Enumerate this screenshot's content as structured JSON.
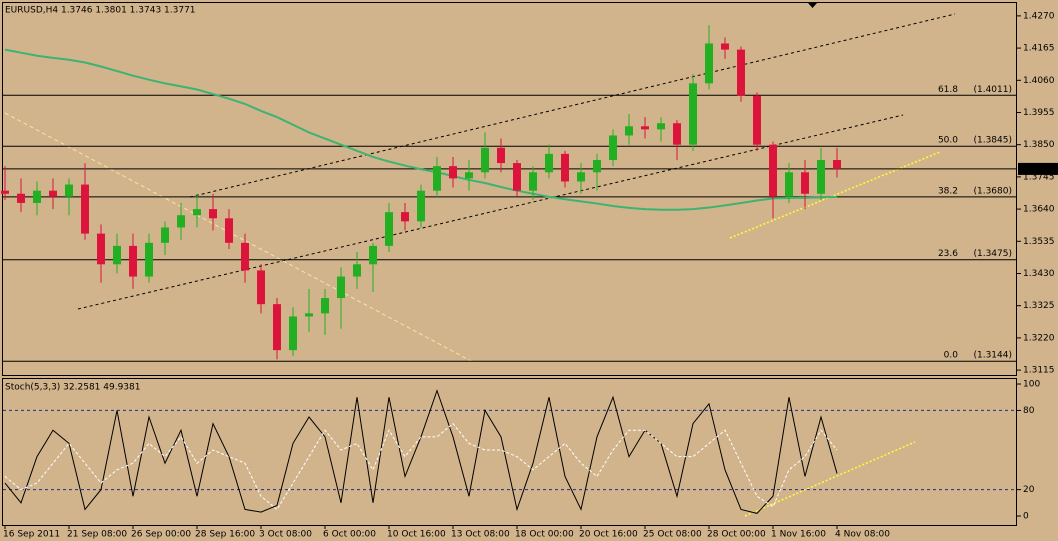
{
  "chart_data": [
    {
      "type": "candlestick",
      "title": "EURUSD,H4  1.3746 1.3801 1.3743 1.3771",
      "categories": [
        "16 Sep 2011",
        null,
        null,
        null,
        "21 Sep 08:00",
        null,
        null,
        null,
        "26 Sep 00:00",
        null,
        null,
        null,
        "28 Sep 16:00",
        null,
        null,
        null,
        "3 Oct 08:00",
        null,
        null,
        null,
        "6 Oct 00:00",
        null,
        null,
        null,
        "10 Oct 16:00",
        null,
        null,
        null,
        "13 Oct 08:00",
        null,
        null,
        null,
        "18 Oct 00:00",
        null,
        null,
        null,
        "20 Oct 16:00",
        null,
        null,
        null,
        "25 Oct 08:00",
        null,
        null,
        null,
        "28 Oct 00:00",
        null,
        null,
        null,
        "1 Nov 16:00",
        null,
        null,
        null,
        "4 Nov 08:00"
      ],
      "open": [
        1.37,
        1.369,
        1.366,
        1.37,
        1.368,
        1.372,
        1.356,
        1.346,
        1.352,
        1.342,
        1.353,
        1.358,
        1.362,
        1.364,
        1.361,
        1.353,
        1.344,
        1.333,
        1.318,
        1.329,
        1.33,
        1.335,
        1.342,
        1.346,
        1.352,
        1.363,
        1.36,
        1.37,
        1.378,
        1.374,
        1.376,
        1.384,
        1.379,
        1.37,
        1.376,
        1.382,
        1.373,
        1.376,
        1.38,
        1.388,
        1.391,
        1.39,
        1.392,
        1.385,
        1.405,
        1.418,
        1.416,
        1.401,
        1.385,
        1.368,
        1.376,
        1.369,
        1.38
      ],
      "high": [
        1.378,
        1.374,
        1.373,
        1.374,
        1.374,
        1.379,
        1.359,
        1.356,
        1.356,
        1.356,
        1.36,
        1.366,
        1.369,
        1.369,
        1.364,
        1.356,
        1.346,
        1.335,
        1.332,
        1.338,
        1.338,
        1.345,
        1.35,
        1.353,
        1.366,
        1.366,
        1.372,
        1.381,
        1.381,
        1.38,
        1.389,
        1.387,
        1.38,
        1.378,
        1.385,
        1.383,
        1.379,
        1.382,
        1.39,
        1.395,
        1.394,
        1.394,
        1.393,
        1.408,
        1.424,
        1.42,
        1.417,
        1.402,
        1.386,
        1.379,
        1.38,
        1.384,
        1.384
      ],
      "low": [
        1.367,
        1.363,
        1.362,
        1.364,
        1.362,
        1.354,
        1.34,
        1.343,
        1.338,
        1.34,
        1.349,
        1.354,
        1.358,
        1.357,
        1.351,
        1.34,
        1.33,
        1.315,
        1.316,
        1.324,
        1.323,
        1.325,
        1.338,
        1.337,
        1.35,
        1.357,
        1.358,
        1.368,
        1.371,
        1.37,
        1.374,
        1.376,
        1.368,
        1.367,
        1.374,
        1.371,
        1.369,
        1.37,
        1.378,
        1.385,
        1.387,
        1.386,
        1.38,
        1.383,
        1.403,
        1.413,
        1.399,
        1.383,
        1.361,
        1.366,
        1.364,
        1.367,
        1.3743
      ],
      "close": [
        1.369,
        1.366,
        1.37,
        1.368,
        1.372,
        1.356,
        1.346,
        1.352,
        1.342,
        1.353,
        1.358,
        1.362,
        1.364,
        1.361,
        1.353,
        1.344,
        1.333,
        1.318,
        1.329,
        1.33,
        1.335,
        1.342,
        1.346,
        1.352,
        1.363,
        1.36,
        1.37,
        1.378,
        1.374,
        1.376,
        1.384,
        1.379,
        1.37,
        1.376,
        1.382,
        1.373,
        1.376,
        1.38,
        1.388,
        1.391,
        1.39,
        1.392,
        1.385,
        1.405,
        1.418,
        1.416,
        1.401,
        1.385,
        1.368,
        1.376,
        1.369,
        1.38,
        1.3771
      ],
      "up_color": "#22b022",
      "down_color": "#dc143c",
      "overlays": [
        {
          "color": "#3cb371",
          "values": [
            1.416,
            1.415,
            1.414,
            1.4133,
            1.4127,
            1.4118,
            1.4105,
            1.409,
            1.4075,
            1.4062,
            1.405,
            1.404,
            1.403,
            1.4015,
            1.4,
            1.3983,
            1.396,
            1.394,
            1.3915,
            1.389,
            1.387,
            1.385,
            1.383,
            1.381,
            1.3795,
            1.3782,
            1.377,
            1.376,
            1.3748,
            1.3735,
            1.3725,
            1.3712,
            1.37,
            1.369,
            1.368,
            1.3672,
            1.3665,
            1.3658,
            1.365,
            1.3644,
            1.364,
            1.3638,
            1.3638,
            1.364,
            1.3645,
            1.3652,
            1.366,
            1.3668,
            1.3675,
            1.3676,
            1.3677,
            1.3678,
            1.368
          ]
        }
      ],
      "fib_levels": [
        {
          "level": {
            "value": 61.8,
            "label": "61.8"
          },
          "price": 1.4011,
          "price_label": "(1.4011)"
        },
        {
          "level": {
            "value": 50,
            "label": "50.0"
          },
          "price": 1.3845,
          "price_label": "(1.3845)"
        },
        {
          "level": {
            "value": 38.2,
            "label": "38.2"
          },
          "price": 1.368,
          "price_label": "(1.3680)"
        },
        {
          "level": {
            "value": 23.6,
            "label": "23.6"
          },
          "price": 1.3475,
          "price_label": "(1.3475)"
        },
        {
          "level": {
            "value": 0,
            "label": "0.0"
          },
          "price": 1.3144,
          "price_label": "(1.3144)"
        }
      ],
      "last_price": {
        "value": 1.3771,
        "label": "1.3771"
      },
      "ylim": [
        1.3099,
        1.4312
      ],
      "yticks": [
        {
          "value": 1.427,
          "label": "1.4270"
        },
        {
          "value": 1.4165,
          "label": "1.4165"
        },
        {
          "value": 1.406,
          "label": "1.4060"
        },
        {
          "value": 1.3955,
          "label": "1.3955"
        },
        {
          "value": 1.385,
          "label": "1.3850"
        },
        {
          "value": 1.3745,
          "label": "1.3745"
        },
        {
          "value": 1.364,
          "label": "1.3640"
        },
        {
          "value": 1.3535,
          "label": "1.3535"
        },
        {
          "value": 1.343,
          "label": "1.3430"
        },
        {
          "value": 1.3325,
          "label": "1.3325"
        },
        {
          "value": 1.322,
          "label": "1.3220"
        },
        {
          "value": 1.3115,
          "label": "1.3115"
        }
      ]
    },
    {
      "type": "line",
      "title": "Stoch(5,3,3) 32.2581 49.9381",
      "series": [
        {
          "color": "#000000",
          "dash": false,
          "values": [
            25,
            10,
            45,
            65,
            55,
            5,
            20,
            80,
            15,
            75,
            40,
            65,
            15,
            70,
            45,
            5,
            3,
            8,
            55,
            75,
            60,
            10,
            90,
            10,
            90,
            30,
            60,
            95,
            60,
            15,
            80,
            60,
            5,
            40,
            90,
            30,
            5,
            60,
            90,
            45,
            65,
            55,
            15,
            70,
            85,
            35,
            5,
            2,
            15,
            90,
            30,
            75,
            32.2581
          ]
        },
        {
          "color": "#ffffff",
          "dash": true,
          "values": [
            30,
            20,
            25,
            40,
            55,
            40,
            25,
            35,
            40,
            55,
            45,
            60,
            40,
            50,
            45,
            40,
            15,
            5,
            25,
            45,
            65,
            50,
            55,
            35,
            65,
            45,
            60,
            60,
            70,
            55,
            50,
            50,
            45,
            35,
            45,
            55,
            40,
            30,
            50,
            65,
            65,
            55,
            45,
            45,
            55,
            65,
            40,
            15,
            7,
            35,
            45,
            65,
            49.9381
          ]
        }
      ],
      "levels": [
        20,
        80
      ],
      "level_color": "#1c2e8c",
      "ylim": [
        -6.8,
        103.8
      ],
      "yticks": [
        0,
        20,
        80,
        100
      ]
    }
  ]
}
